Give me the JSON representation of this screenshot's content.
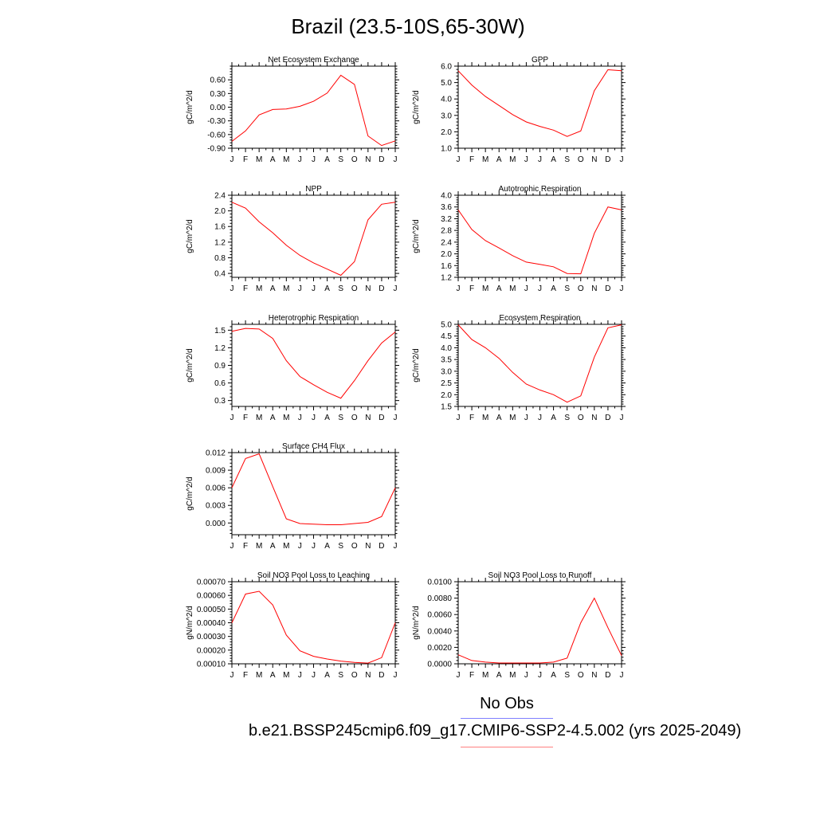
{
  "title": "Brazil (23.5-10S,65-30W)",
  "legend": {
    "obs_label": "No Obs",
    "model_label": "b.e21.BSSP245cmip6.f09_g17.CMIP6-SSP2-4.5.002 (yrs 2025-2049)",
    "obs_color": "#8080ff",
    "model_color": "#ff8080"
  },
  "line_color": "#ff0000",
  "chart_data": [
    {
      "type": "line",
      "title": "Net Ecosystem Exchange",
      "ylabel": "gC/m^2/d",
      "categories": [
        "J",
        "F",
        "M",
        "A",
        "M",
        "J",
        "J",
        "A",
        "S",
        "O",
        "N",
        "D",
        "J"
      ],
      "ylim": [
        -0.9,
        0.9
      ],
      "yticks": [
        "0.60",
        "0.30",
        "0.00",
        "-0.30",
        "-0.60",
        "-0.90"
      ],
      "ytick_values": [
        0.6,
        0.3,
        0.0,
        -0.3,
        -0.6,
        -0.9
      ],
      "values": [
        -0.75,
        -0.52,
        -0.17,
        -0.05,
        -0.04,
        0.02,
        0.13,
        0.31,
        0.7,
        0.5,
        -0.63,
        -0.84,
        -0.74
      ]
    },
    {
      "type": "line",
      "title": "GPP",
      "ylabel": "gC/m^2/d",
      "categories": [
        "J",
        "F",
        "M",
        "A",
        "M",
        "J",
        "J",
        "A",
        "S",
        "O",
        "N",
        "D",
        "J"
      ],
      "ylim": [
        1.0,
        6.0
      ],
      "yticks": [
        "6.0",
        "5.0",
        "4.0",
        "3.0",
        "2.0",
        "1.0"
      ],
      "ytick_values": [
        6.0,
        5.0,
        4.0,
        3.0,
        2.0,
        1.0
      ],
      "values": [
        5.72,
        4.85,
        4.15,
        3.6,
        3.05,
        2.6,
        2.33,
        2.1,
        1.72,
        2.05,
        4.5,
        5.78,
        5.72
      ]
    },
    {
      "type": "line",
      "title": "NPP",
      "ylabel": "gC/m^2/d",
      "categories": [
        "J",
        "F",
        "M",
        "A",
        "M",
        "J",
        "J",
        "A",
        "S",
        "O",
        "N",
        "D",
        "J"
      ],
      "ylim": [
        0.3,
        2.4
      ],
      "yticks": [
        "2.4",
        "2.0",
        "1.6",
        "1.2",
        "0.8",
        "0.4"
      ],
      "ytick_values": [
        2.4,
        2.0,
        1.6,
        1.2,
        0.8,
        0.4
      ],
      "values": [
        2.22,
        2.07,
        1.72,
        1.44,
        1.12,
        0.86,
        0.67,
        0.51,
        0.35,
        0.7,
        1.77,
        2.17,
        2.22
      ]
    },
    {
      "type": "line",
      "title": "Autotrophic Respiration",
      "ylabel": "gC/m^2/d",
      "categories": [
        "J",
        "F",
        "M",
        "A",
        "M",
        "J",
        "J",
        "A",
        "S",
        "O",
        "N",
        "D",
        "J"
      ],
      "ylim": [
        1.2,
        4.0
      ],
      "yticks": [
        "4.0",
        "3.6",
        "3.2",
        "2.8",
        "2.4",
        "2.0",
        "1.6",
        "1.2"
      ],
      "ytick_values": [
        4.0,
        3.6,
        3.2,
        2.8,
        2.4,
        2.0,
        1.6,
        1.2
      ],
      "values": [
        3.5,
        2.83,
        2.45,
        2.2,
        1.94,
        1.72,
        1.64,
        1.56,
        1.33,
        1.32,
        2.7,
        3.6,
        3.5
      ]
    },
    {
      "type": "line",
      "title": "Heterotrophic Respiration",
      "ylabel": "gC/m^2/d",
      "categories": [
        "J",
        "F",
        "M",
        "A",
        "M",
        "J",
        "J",
        "A",
        "S",
        "O",
        "N",
        "D",
        "J"
      ],
      "ylim": [
        0.2,
        1.6
      ],
      "yticks": [
        "1.5",
        "1.2",
        "0.9",
        "0.6",
        "0.3"
      ],
      "ytick_values": [
        1.5,
        1.2,
        0.9,
        0.6,
        0.3
      ],
      "values": [
        1.48,
        1.53,
        1.52,
        1.36,
        0.98,
        0.71,
        0.57,
        0.44,
        0.34,
        0.64,
        0.98,
        1.28,
        1.47
      ]
    },
    {
      "type": "line",
      "title": "Ecosystem Respiration",
      "ylabel": "gC/m^2/d",
      "categories": [
        "J",
        "F",
        "M",
        "A",
        "M",
        "J",
        "J",
        "A",
        "S",
        "O",
        "N",
        "D",
        "J"
      ],
      "ylim": [
        1.5,
        5.0
      ],
      "yticks": [
        "5.0",
        "4.5",
        "4.0",
        "3.5",
        "3.0",
        "2.5",
        "2.0",
        "1.5"
      ],
      "ytick_values": [
        5.0,
        4.5,
        4.0,
        3.5,
        3.0,
        2.5,
        2.0,
        1.5
      ],
      "values": [
        4.98,
        4.35,
        4.0,
        3.55,
        2.95,
        2.45,
        2.2,
        2.0,
        1.68,
        1.95,
        3.6,
        4.85,
        4.98
      ]
    },
    {
      "type": "line",
      "title": "Surface CH4 Flux",
      "ylabel": "gC/m^2/d",
      "categories": [
        "J",
        "F",
        "M",
        "A",
        "M",
        "J",
        "J",
        "A",
        "S",
        "O",
        "N",
        "D",
        "J"
      ],
      "ylim": [
        -0.002,
        0.012
      ],
      "yticks": [
        "0.012",
        "0.009",
        "0.006",
        "0.003",
        "0.000"
      ],
      "ytick_values": [
        0.012,
        0.009,
        0.006,
        0.003,
        0.0
      ],
      "values": [
        0.006,
        0.011,
        0.0118,
        0.0062,
        0.0007,
        -0.0001,
        -0.0002,
        -0.0003,
        -0.0003,
        -0.0001,
        0.0001,
        0.0011,
        0.006
      ]
    },
    {
      "type": "line",
      "title": "Soil NO3 Pool Loss to Leaching",
      "ylabel": "gN/m^2/d",
      "categories": [
        "J",
        "F",
        "M",
        "A",
        "M",
        "J",
        "J",
        "A",
        "S",
        "O",
        "N",
        "D",
        "J"
      ],
      "ylim": [
        0.0001,
        0.0007
      ],
      "yticks": [
        "0.00070",
        "0.00060",
        "0.00050",
        "0.00040",
        "0.00030",
        "0.00020",
        "0.00010"
      ],
      "ytick_values": [
        0.0007,
        0.0006,
        0.0005,
        0.0004,
        0.0003,
        0.0002,
        0.0001
      ],
      "values": [
        0.0004,
        0.00061,
        0.00063,
        0.00053,
        0.00031,
        0.000195,
        0.000155,
        0.000135,
        0.00012,
        0.00011,
        0.000105,
        0.000145,
        0.0004
      ]
    },
    {
      "type": "line",
      "title": "Soil NO3 Pool Loss to Runoff",
      "ylabel": "gN/m^2/d",
      "categories": [
        "J",
        "F",
        "M",
        "A",
        "M",
        "J",
        "J",
        "A",
        "S",
        "O",
        "N",
        "D",
        "J"
      ],
      "ylim": [
        0.0,
        0.01
      ],
      "yticks": [
        "0.0100",
        "0.0080",
        "0.0060",
        "0.0040",
        "0.0020",
        "0.0000"
      ],
      "ytick_values": [
        0.01,
        0.008,
        0.006,
        0.004,
        0.002,
        0.0
      ],
      "values": [
        0.0011,
        0.0004,
        0.0002,
        0.0001,
        0.0001,
        0.0001,
        0.0001,
        0.0002,
        0.0007,
        0.005,
        0.008,
        0.0044,
        0.001
      ]
    }
  ]
}
